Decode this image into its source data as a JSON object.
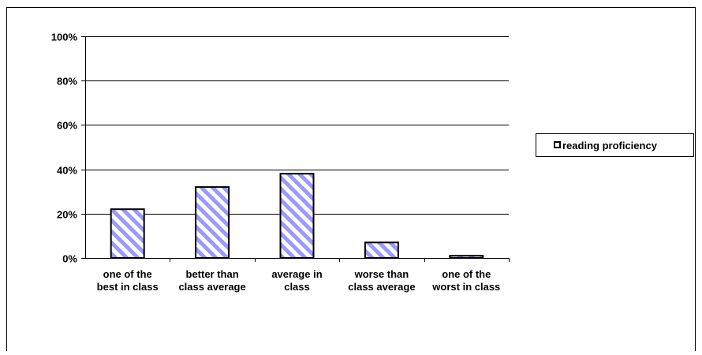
{
  "chart_data": {
    "type": "bar",
    "categories": [
      [
        "one of the",
        "best in class"
      ],
      [
        "better than",
        "class average"
      ],
      [
        "average in",
        "class"
      ],
      [
        "worse than",
        "class average"
      ],
      [
        "one of the",
        "worst in class"
      ]
    ],
    "series": [
      {
        "name": "reading proficiency",
        "values": [
          22,
          32,
          38,
          7,
          1
        ]
      }
    ],
    "ylim": [
      0,
      100
    ],
    "yticks": [
      0,
      20,
      40,
      60,
      80,
      100
    ],
    "ytick_labels": [
      "0%",
      "20%",
      "40%",
      "60%",
      "80%",
      "100%"
    ],
    "grid": true,
    "legend_position": "right",
    "colors": {
      "bar_stripe": "#9999ff",
      "bar_background": "#ffffff",
      "bar_outline": "#000000",
      "gridline": "#000000"
    }
  }
}
